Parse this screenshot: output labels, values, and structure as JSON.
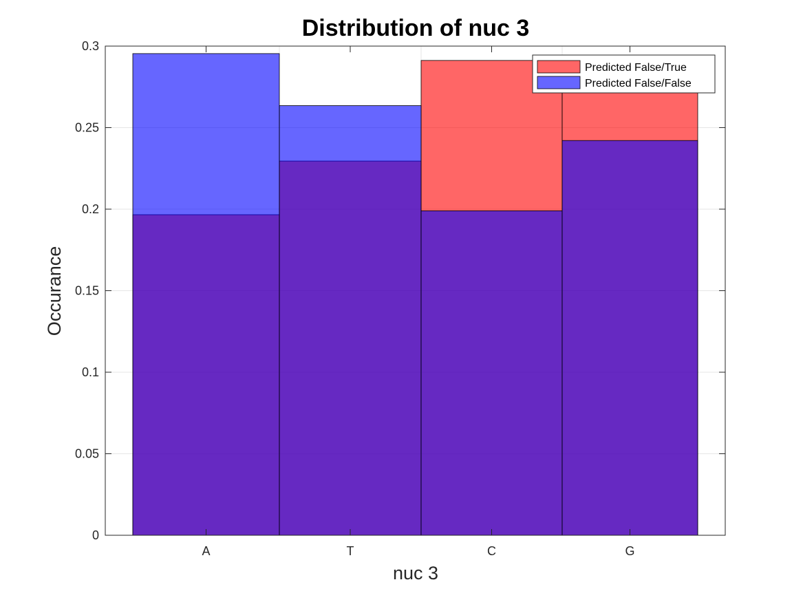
{
  "chart_data": {
    "type": "bar",
    "title": "Distribution of nuc 3",
    "xlabel": "nuc 3",
    "ylabel": "Occurance",
    "categories": [
      "A",
      "T",
      "C",
      "G"
    ],
    "ylim": [
      0,
      0.3
    ],
    "yticks": [
      0,
      0.05,
      0.1,
      0.15,
      0.2,
      0.25,
      0.3
    ],
    "ytick_labels": [
      "0",
      "0.05",
      "0.1",
      "0.15",
      "0.2",
      "0.25",
      "0.3"
    ],
    "grid": true,
    "legend_position": "top-right",
    "overlap": "overlaid histogram with transparency",
    "series": [
      {
        "name": "Predicted False/True",
        "color": "#ff0000",
        "opacity": 0.6,
        "values": [
          0.1966,
          0.2295,
          0.2912,
          0.2828
        ]
      },
      {
        "name": "Predicted False/False",
        "color": "#0000ff",
        "opacity": 0.6,
        "values": [
          0.2954,
          0.2635,
          0.199,
          0.2421
        ]
      }
    ]
  }
}
